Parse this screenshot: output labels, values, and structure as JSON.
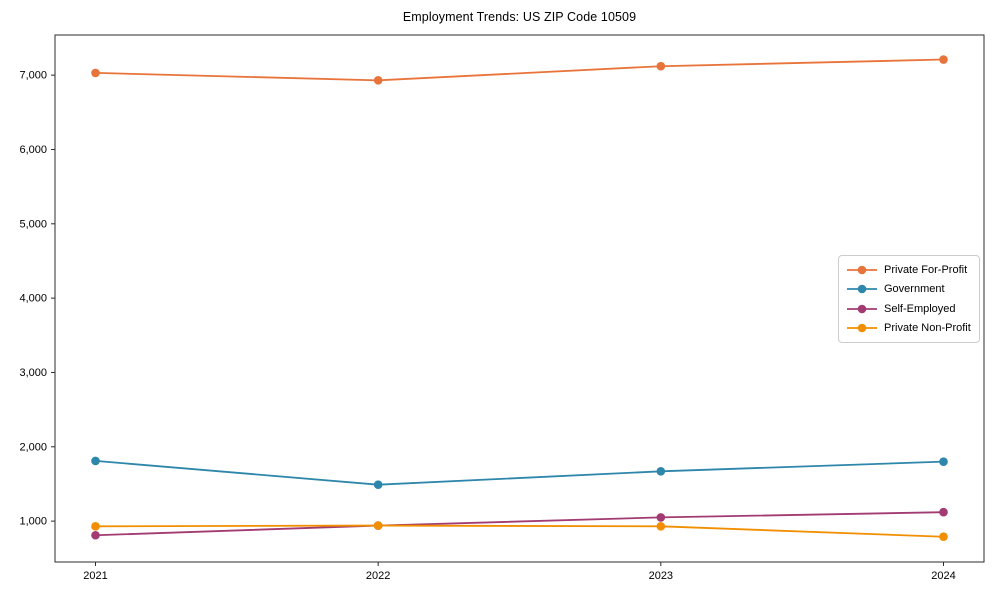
{
  "chart_data": {
    "type": "line",
    "title": "Employment Trends: US ZIP Code 10509",
    "x_labels": [
      "2021",
      "2022",
      "2023",
      "2024"
    ],
    "series": [
      {
        "name": "Private For-Profit",
        "color": "#E8743B",
        "values": [
          7030,
          6930,
          7120,
          7210
        ]
      },
      {
        "name": "Government",
        "color": "#2E86AB",
        "values": [
          1810,
          1490,
          1670,
          1800
        ]
      },
      {
        "name": "Self-Employed",
        "color": "#A23B72",
        "values": [
          810,
          940,
          1050,
          1120
        ]
      },
      {
        "name": "Private Non-Profit",
        "color": "#F18F01",
        "values": [
          930,
          940,
          930,
          790
        ]
      }
    ],
    "y_ticks": [
      1000,
      2000,
      3000,
      4000,
      5000,
      6000,
      7000
    ],
    "y_tick_labels": [
      "1,000",
      "2,000",
      "3,000",
      "4,000",
      "5,000",
      "6,000",
      "7,000"
    ],
    "ylim": [
      450,
      7540
    ],
    "xlabel": "",
    "ylabel": "",
    "grid": false,
    "legend_position": "center-right",
    "marker": "circle",
    "axis_color": "#2b2b2b"
  }
}
